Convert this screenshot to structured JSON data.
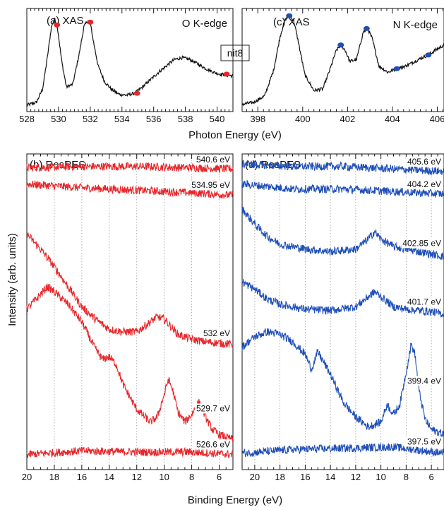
{
  "figure": {
    "center_label": "nit8",
    "y_axis_label": "Intensity (arb. units)",
    "top_x_label": "Photon Energy (eV)",
    "bottom_x_label": "Binding Energy (eV)"
  },
  "chart_data": [
    {
      "id": "a",
      "type": "line",
      "title": "(a) XAS",
      "annotation": "O K-edge",
      "xlim": [
        528,
        541
      ],
      "x_ticks": [
        528,
        530,
        532,
        534,
        536,
        538,
        540
      ],
      "line_color": "#111111",
      "marker_color": "#e8262a",
      "x": [
        528.0,
        528.6,
        529.0,
        529.3,
        529.55,
        529.75,
        529.95,
        530.2,
        530.5,
        530.9,
        531.3,
        531.6,
        531.85,
        532.0,
        532.2,
        532.5,
        532.9,
        533.3,
        533.8,
        534.3,
        534.8,
        535.3,
        535.8,
        536.3,
        536.8,
        537.3,
        537.8,
        538.3,
        538.8,
        539.3,
        539.8,
        540.2,
        540.6,
        541.0
      ],
      "y": [
        0.02,
        0.05,
        0.2,
        0.55,
        0.88,
        0.97,
        0.85,
        0.5,
        0.22,
        0.25,
        0.58,
        0.88,
        0.95,
        0.92,
        0.72,
        0.45,
        0.28,
        0.2,
        0.14,
        0.13,
        0.15,
        0.22,
        0.3,
        0.38,
        0.45,
        0.52,
        0.54,
        0.52,
        0.47,
        0.42,
        0.38,
        0.36,
        0.35,
        0.34
      ],
      "markers": [
        {
          "x": 529.9,
          "y": 0.9
        },
        {
          "x": 532.0,
          "y": 0.93
        },
        {
          "x": 534.95,
          "y": 0.15
        },
        {
          "x": 540.6,
          "y": 0.36
        }
      ]
    },
    {
      "id": "c",
      "type": "line",
      "title": "(c) XAS",
      "annotation": "N K-edge",
      "xlim": [
        397.3,
        406.3
      ],
      "x_ticks": [
        398,
        400,
        402,
        404,
        406
      ],
      "line_color": "#111111",
      "marker_color": "#1f4fb8",
      "x": [
        397.3,
        397.8,
        398.3,
        398.7,
        399.0,
        399.2,
        399.4,
        399.6,
        399.8,
        400.1,
        400.5,
        400.9,
        401.2,
        401.5,
        401.7,
        401.9,
        402.1,
        402.4,
        402.7,
        402.9,
        403.1,
        403.4,
        403.8,
        404.2,
        404.6,
        405.0,
        405.4,
        405.6,
        405.9,
        406.3
      ],
      "y": [
        0.03,
        0.05,
        0.12,
        0.4,
        0.78,
        0.95,
        1.0,
        0.95,
        0.72,
        0.35,
        0.18,
        0.2,
        0.4,
        0.62,
        0.68,
        0.62,
        0.5,
        0.52,
        0.82,
        0.86,
        0.75,
        0.45,
        0.38,
        0.42,
        0.45,
        0.5,
        0.55,
        0.57,
        0.62,
        0.68
      ],
      "markers": [
        {
          "x": 399.4,
          "y": 1.0
        },
        {
          "x": 401.7,
          "y": 0.68
        },
        {
          "x": 402.85,
          "y": 0.86
        },
        {
          "x": 404.2,
          "y": 0.42
        },
        {
          "x": 405.6,
          "y": 0.57
        }
      ]
    },
    {
      "id": "b",
      "type": "line",
      "title": "(b) ResPES",
      "xlim": [
        20,
        5
      ],
      "x_ticks": [
        20,
        18,
        16,
        14,
        12,
        10,
        8,
        6
      ],
      "grid": true,
      "line_color": "#e8262a",
      "series": [
        {
          "name": "540.6 eV",
          "offset": 11.2,
          "x": [
            20,
            16,
            12,
            8,
            5
          ],
          "y": [
            0.25,
            0.3,
            0.3,
            0.25,
            0.2
          ]
        },
        {
          "name": "534.95 eV",
          "offset": 10.0,
          "x": [
            20,
            16,
            12,
            8,
            5
          ],
          "y": [
            0.8,
            0.65,
            0.55,
            0.45,
            0.35
          ]
        },
        {
          "name": "532 eV",
          "offset": 4.3,
          "x": [
            20.0,
            19.0,
            18.0,
            17.0,
            16.0,
            15.0,
            14.0,
            13.0,
            12.0,
            11.0,
            10.5,
            10.0,
            9.0,
            8.0,
            7.0,
            6.0,
            5.0
          ],
          "y": [
            4.5,
            3.9,
            3.2,
            2.4,
            1.6,
            1.1,
            0.7,
            0.6,
            0.6,
            1.0,
            1.2,
            1.1,
            0.5,
            0.3,
            0.2,
            0.15,
            0.1
          ]
        },
        {
          "name": "529.7 eV",
          "offset": 0.8,
          "x": [
            20.0,
            19.0,
            18.5,
            18.0,
            17.0,
            16.0,
            15.0,
            14.5,
            14.0,
            13.5,
            13.0,
            12.0,
            11.0,
            10.5,
            10.0,
            9.7,
            9.4,
            9.0,
            8.5,
            8.0,
            7.5,
            7.2,
            7.0,
            6.5,
            6.0,
            5.5,
            5.0
          ],
          "y": [
            5.0,
            5.6,
            5.9,
            5.7,
            5.2,
            4.5,
            3.4,
            3.0,
            3.1,
            2.8,
            2.0,
            1.0,
            0.5,
            0.7,
            1.6,
            2.2,
            1.8,
            0.9,
            0.5,
            0.8,
            1.3,
            1.0,
            0.7,
            0.2,
            0.0,
            -0.1,
            -0.2
          ]
        },
        {
          "name": "526.6 eV",
          "offset": 0.0,
          "x": [
            20,
            16,
            12,
            8,
            5
          ],
          "y": [
            0.0,
            0.15,
            0.1,
            0.1,
            0.0
          ]
        }
      ]
    },
    {
      "id": "d",
      "type": "line",
      "title": "(d) ResPES",
      "xlim": [
        21,
        5
      ],
      "x_ticks": [
        20,
        18,
        16,
        14,
        12,
        10,
        8,
        6
      ],
      "grid": true,
      "line_color": "#1f4fb8",
      "series": [
        {
          "name": "405.6 eV",
          "offset": 11.2,
          "x": [
            21,
            17,
            13,
            9,
            5
          ],
          "y": [
            0.4,
            0.3,
            0.3,
            0.2,
            0.1
          ]
        },
        {
          "name": "404.2 eV",
          "offset": 10.2,
          "x": [
            21,
            17,
            13,
            9,
            5
          ],
          "y": [
            0.6,
            0.4,
            0.4,
            0.3,
            0.2
          ]
        },
        {
          "name": "402.85 eV",
          "offset": 8.0,
          "x": [
            21.0,
            20.0,
            19.0,
            18.0,
            16.0,
            14.0,
            12.0,
            11.0,
            10.5,
            10.0,
            9.0,
            8.0,
            6.0,
            5.0
          ],
          "y": [
            1.8,
            1.2,
            0.7,
            0.4,
            0.2,
            0.1,
            0.2,
            0.6,
            0.9,
            0.6,
            0.3,
            0.2,
            0.0,
            -0.1
          ]
        },
        {
          "name": "401.7 eV",
          "offset": 5.6,
          "x": [
            21.0,
            20.0,
            19.0,
            18.0,
            16.0,
            14.0,
            12.0,
            11.0,
            10.5,
            10.0,
            9.0,
            8.0,
            6.0,
            5.0
          ],
          "y": [
            1.3,
            1.0,
            0.6,
            0.4,
            0.2,
            0.15,
            0.3,
            0.7,
            0.9,
            0.7,
            0.3,
            0.2,
            0.1,
            0.0
          ]
        },
        {
          "name": "399.4 eV",
          "offset": 0.8,
          "x": [
            21.0,
            20.0,
            19.0,
            18.0,
            17.0,
            16.0,
            15.5,
            15.0,
            14.0,
            13.0,
            12.0,
            11.0,
            10.0,
            9.5,
            9.0,
            8.5,
            8.0,
            7.6,
            7.3,
            7.0,
            6.5,
            6.0,
            5.0
          ],
          "y": [
            3.5,
            3.9,
            4.1,
            4.0,
            3.7,
            3.2,
            2.6,
            3.3,
            2.4,
            1.3,
            0.7,
            0.3,
            0.5,
            1.2,
            0.8,
            1.2,
            2.5,
            3.6,
            3.2,
            1.8,
            0.6,
            0.2,
            0.0
          ]
        },
        {
          "name": "397.5 eV",
          "offset": 0.0,
          "x": [
            21,
            17,
            13,
            9,
            5
          ],
          "y": [
            0.05,
            0.2,
            0.25,
            0.3,
            0.05
          ]
        }
      ]
    }
  ]
}
